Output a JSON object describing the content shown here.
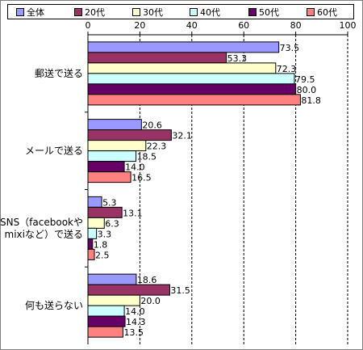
{
  "chart_data": {
    "type": "bar",
    "orientation": "horizontal",
    "categories": [
      "郵送で送る",
      "メールで送る",
      "SNS（facebookや\nmixiなど）で送る",
      "何も送らない"
    ],
    "series": [
      {
        "name": "全体",
        "color": "#9999ff",
        "values": [
          73.5,
          20.6,
          5.3,
          18.6
        ]
      },
      {
        "name": "20代",
        "color": "#993366",
        "values": [
          53.3,
          32.1,
          13.1,
          31.5
        ]
      },
      {
        "name": "30代",
        "color": "#ffffcc",
        "values": [
          72.3,
          22.3,
          6.3,
          20.0
        ]
      },
      {
        "name": "40代",
        "color": "#ccffff",
        "values": [
          79.5,
          18.5,
          3.3,
          14.0
        ]
      },
      {
        "name": "50代",
        "color": "#660066",
        "values": [
          80.0,
          14.0,
          1.8,
          14.3
        ]
      },
      {
        "name": "60代",
        "color": "#ff8080",
        "values": [
          81.8,
          16.5,
          2.5,
          13.5
        ]
      }
    ],
    "value_labels": [
      [
        "73.5",
        "20.6",
        "5.3",
        "18.6"
      ],
      [
        "53.3",
        "32.1",
        "13.1",
        "31.5"
      ],
      [
        "72.3",
        "22.3",
        "6.3",
        "20.0"
      ],
      [
        "79.5",
        "18.5",
        "3.3",
        "14.0"
      ],
      [
        "80.0",
        "14.0",
        "1.8",
        "14.3"
      ],
      [
        "81.8",
        "16.5",
        "2.5",
        "13.5"
      ]
    ],
    "xticks": [
      "0",
      "20",
      "40",
      "60",
      "80",
      "100"
    ],
    "xlim": [
      0,
      100
    ],
    "grid": true,
    "legend_position": "top"
  }
}
